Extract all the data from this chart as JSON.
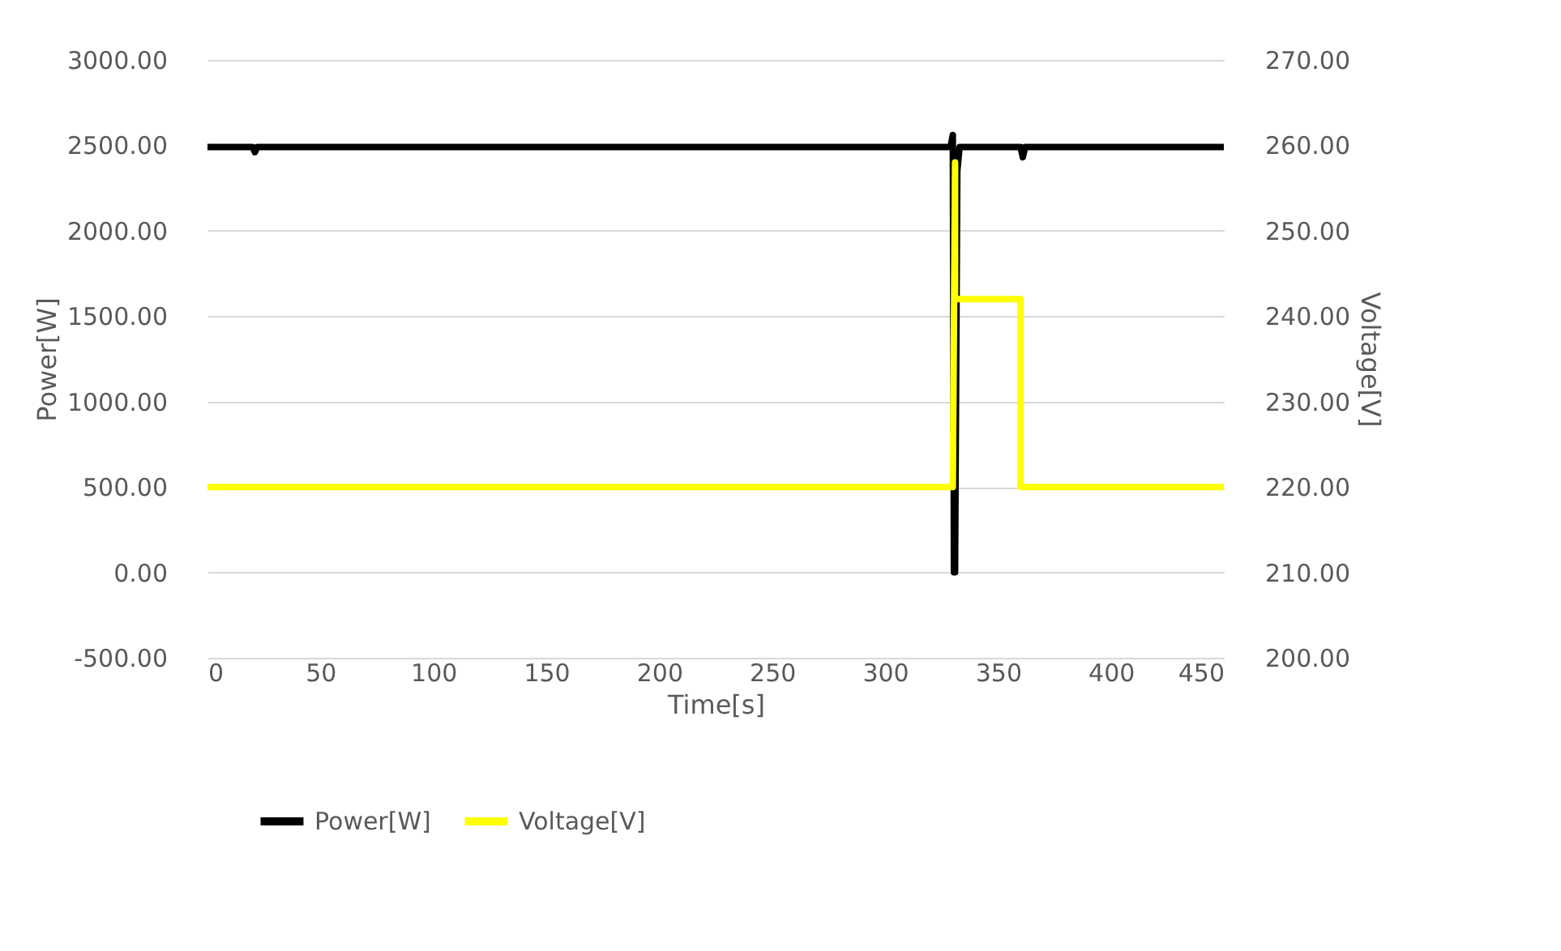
{
  "chart_data": {
    "type": "line",
    "xlabel": "Time[s]",
    "ylabel": "Power[W]",
    "y2label": "Voltage[V]",
    "xlim": [
      0,
      450
    ],
    "xticks": [
      0,
      50,
      100,
      150,
      200,
      250,
      300,
      350,
      400,
      450
    ],
    "ylim": [
      -500,
      3000
    ],
    "yticks": [
      {
        "value": -500,
        "label": "-500.00"
      },
      {
        "value": 0,
        "label": "0.00"
      },
      {
        "value": 500,
        "label": "500.00"
      },
      {
        "value": 1000,
        "label": "1000.00"
      },
      {
        "value": 1500,
        "label": "1500.00"
      },
      {
        "value": 2000,
        "label": "2000.00"
      },
      {
        "value": 2500,
        "label": "2500.00"
      },
      {
        "value": 3000,
        "label": "3000.00"
      }
    ],
    "y2lim": [
      200,
      270
    ],
    "y2ticks": [
      {
        "value": 200,
        "label": "200.00"
      },
      {
        "value": 210,
        "label": "210.00"
      },
      {
        "value": 220,
        "label": "220.00"
      },
      {
        "value": 230,
        "label": "230.00"
      },
      {
        "value": 240,
        "label": "240.00"
      },
      {
        "value": 250,
        "label": "250.00"
      },
      {
        "value": 260,
        "label": "260.00"
      },
      {
        "value": 270,
        "label": "270.00"
      }
    ],
    "series": [
      {
        "name": "Power[W]",
        "color": "#000000",
        "x": [
          0,
          20,
          21,
          22,
          329,
          330,
          330.5,
          331,
          332,
          333,
          360,
          361,
          362,
          450
        ],
        "values": [
          2490,
          2490,
          2460,
          2490,
          2490,
          2560,
          0,
          0,
          2350,
          2490,
          2490,
          2430,
          2490,
          2490
        ]
      },
      {
        "name": "Voltage[V]",
        "color": "#ffff00",
        "axis": "y2",
        "x": [
          0,
          330,
          331,
          331,
          360,
          360,
          450
        ],
        "values": [
          220,
          220,
          258,
          242,
          242,
          220,
          220
        ]
      }
    ],
    "grid": "y",
    "legend": "bottom",
    "marker": "none",
    "line_style": "solid"
  }
}
